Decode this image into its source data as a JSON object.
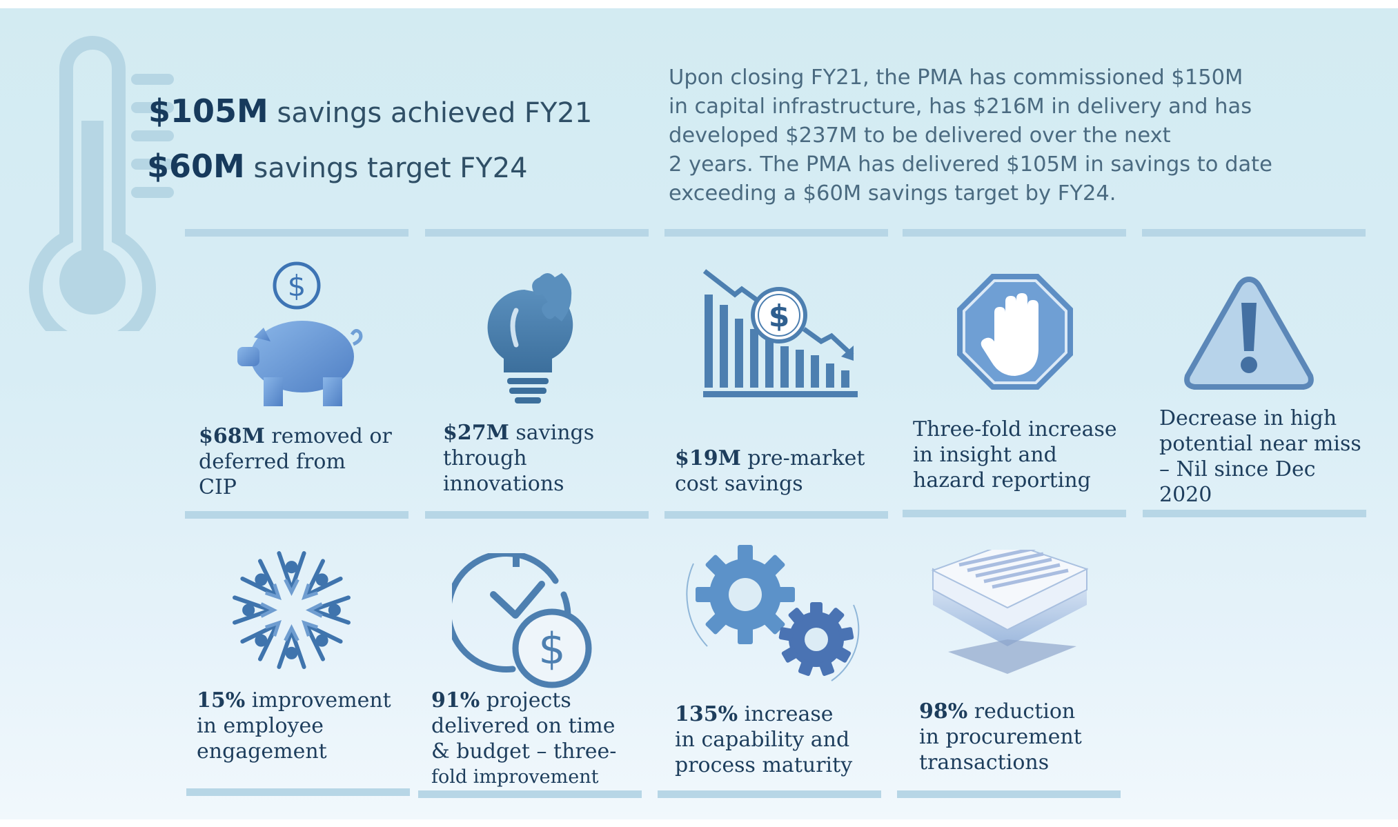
{
  "headline": {
    "line1": {
      "value": "$105M",
      "text": "savings achieved FY21"
    },
    "line2": {
      "value": "$60M",
      "text": "savings target FY24"
    }
  },
  "summary": [
    "Upon closing FY21, the PMA has commissioned $150M",
    "in capital infrastructure, has $216M in delivery and has",
    "developed $237M to be delivered over the next",
    "2 years. The PMA has delivered $105M in savings to date",
    "exceeding a $60M savings target by FY24."
  ],
  "stats": [
    {
      "icon": "piggy-bank-icon",
      "value": "$68M",
      "lines": [
        " removed or",
        "deferred from",
        "CIP"
      ]
    },
    {
      "icon": "lightbulb-puzzle-icon",
      "value": "$27M",
      "lines": [
        " savings",
        "through",
        "innovations"
      ]
    },
    {
      "icon": "declining-cost-chart-icon",
      "value": "$19M",
      "lines": [
        " pre-market",
        "cost savings"
      ]
    },
    {
      "icon": "stop-hand-icon",
      "value": "",
      "lines": [
        "Three-fold increase",
        "in insight and",
        "hazard reporting"
      ]
    },
    {
      "icon": "warning-triangle-icon",
      "value": "",
      "lines": [
        "Decrease in high",
        "potential near miss",
        "– Nil since Dec",
        "2020"
      ]
    },
    {
      "icon": "people-circle-icon",
      "value": "15%",
      "lines": [
        " improvement",
        "in employee",
        "engagement"
      ]
    },
    {
      "icon": "clock-dollar-icon",
      "value": "91%",
      "lines": [
        " projects",
        "delivered on time",
        "& budget  – three-",
        "fold improvement"
      ]
    },
    {
      "icon": "gears-icon",
      "value": "135%",
      "lines": [
        " increase",
        "in capability and",
        "process maturity"
      ]
    },
    {
      "icon": "document-stack-icon",
      "value": "98%",
      "lines": [
        " reduction",
        "in procurement",
        "transactions"
      ]
    }
  ],
  "colors": {
    "background": "#d5ecf4",
    "dark_text": "#1d3d5c",
    "icon_blue": "#4d7fb0",
    "divider": "#b7d6e6"
  }
}
